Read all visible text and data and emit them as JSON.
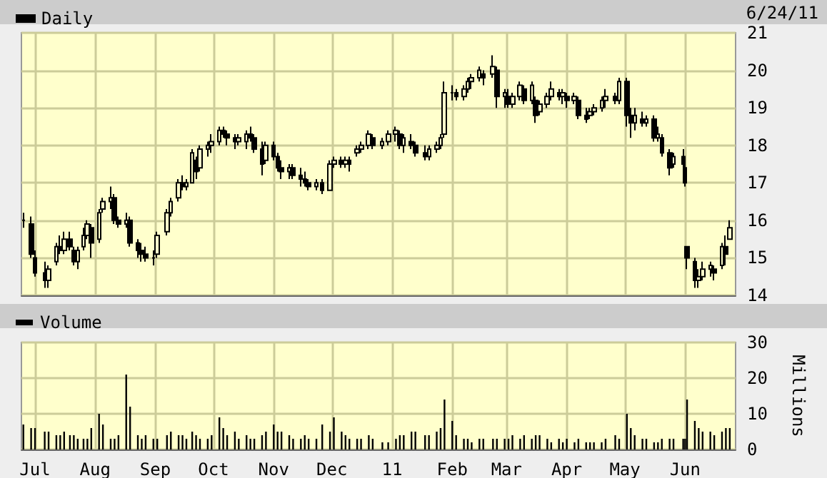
{
  "chart_data": [
    {
      "type": "candlestick",
      "legend": "top left",
      "grid": true,
      "tick_labels": "y",
      "annotations": [
        "6/24/11"
      ],
      "xlim": [
        "2010-06-24",
        "2011-06-27"
      ],
      "xticks": [
        {
          "value": "2010-07-01",
          "label": null
        },
        {
          "value": "2010-08-01",
          "label": null
        },
        {
          "value": "2010-09-01",
          "label": null
        },
        {
          "value": "2010-10-01",
          "label": null
        },
        {
          "value": "2010-11-01",
          "label": null
        },
        {
          "value": "2010-12-01",
          "label": null
        },
        {
          "value": "2011-01-01",
          "label": null
        },
        {
          "value": "2011-02-01",
          "label": null
        },
        {
          "value": "2011-03-01",
          "label": null
        },
        {
          "value": "2011-04-01",
          "label": null
        },
        {
          "value": "2011-05-01",
          "label": null
        },
        {
          "value": "2011-06-01",
          "label": null
        }
      ],
      "ylim": [
        14,
        21
      ],
      "yticks": [
        14,
        15,
        16,
        17,
        18,
        19,
        20,
        21
      ],
      "x": [
        "2010-06-25",
        "2010-06-29",
        "2010-07-01",
        "2010-07-06",
        "2010-07-08",
        "2010-07-12",
        "2010-07-14",
        "2010-07-16",
        "2010-07-19",
        "2010-07-21",
        "2010-07-23",
        "2010-07-26",
        "2010-07-28",
        "2010-07-30",
        "2010-08-03",
        "2010-08-05",
        "2010-08-09",
        "2010-08-11",
        "2010-08-13",
        "2010-08-17",
        "2010-08-19",
        "2010-08-23",
        "2010-08-25",
        "2010-08-27",
        "2010-08-31",
        "2010-09-02",
        "2010-09-07",
        "2010-09-09",
        "2010-09-13",
        "2010-09-15",
        "2010-09-17",
        "2010-09-20",
        "2010-09-22",
        "2010-09-24",
        "2010-09-28",
        "2010-09-30",
        "2010-10-04",
        "2010-10-06",
        "2010-10-08",
        "2010-10-12",
        "2010-10-14",
        "2010-10-18",
        "2010-10-20",
        "2010-10-22",
        "2010-10-26",
        "2010-10-28",
        "2010-11-01",
        "2010-11-03",
        "2010-11-05",
        "2010-11-09",
        "2010-11-11",
        "2010-11-15",
        "2010-11-17",
        "2010-11-19",
        "2010-11-23",
        "2010-11-26",
        "2010-11-30",
        "2010-12-02",
        "2010-12-06",
        "2010-12-08",
        "2010-12-10",
        "2010-12-14",
        "2010-12-16",
        "2010-12-20",
        "2010-12-22",
        "2010-12-27",
        "2010-12-30",
        "2011-01-03",
        "2011-01-05",
        "2011-01-07",
        "2011-01-11",
        "2011-01-13",
        "2011-01-18",
        "2011-01-20",
        "2011-01-24",
        "2011-01-26",
        "2011-01-28",
        "2011-02-01",
        "2011-02-03",
        "2011-02-07",
        "2011-02-09",
        "2011-02-11",
        "2011-02-15",
        "2011-02-17",
        "2011-02-22",
        "2011-02-24",
        "2011-02-28",
        "2011-03-02",
        "2011-03-04",
        "2011-03-08",
        "2011-03-10",
        "2011-03-14",
        "2011-03-16",
        "2011-03-18",
        "2011-03-22",
        "2011-03-24",
        "2011-03-28",
        "2011-03-30",
        "2011-04-01",
        "2011-04-05",
        "2011-04-07",
        "2011-04-11",
        "2011-04-13",
        "2011-04-15",
        "2011-04-19",
        "2011-04-21",
        "2011-04-26",
        "2011-04-28",
        "2011-05-02",
        "2011-05-04",
        "2011-05-06",
        "2011-05-10",
        "2011-05-12",
        "2011-05-16",
        "2011-05-18",
        "2011-05-20",
        "2011-05-24",
        "2011-05-26",
        "2011-05-31",
        "2011-06-01",
        "2011-06-02",
        "2011-06-06",
        "2011-06-08",
        "2011-06-10",
        "2011-06-14",
        "2011-06-16",
        "2011-06-20",
        "2011-06-22",
        "2011-06-24"
      ],
      "series": [
        {
          "name": "Daily",
          "color": "#000000",
          "ohlc": [
            [
              16.0,
              16.2,
              15.8,
              16.0
            ],
            [
              15.9,
              16.1,
              15.0,
              15.1
            ],
            [
              15.0,
              15.2,
              14.5,
              14.6
            ],
            [
              14.6,
              14.9,
              14.2,
              14.4
            ],
            [
              14.4,
              14.8,
              14.2,
              14.7
            ],
            [
              14.9,
              15.4,
              14.8,
              15.3
            ],
            [
              15.3,
              15.6,
              15.1,
              15.2
            ],
            [
              15.2,
              15.7,
              15.1,
              15.5
            ],
            [
              15.5,
              15.7,
              15.2,
              15.3
            ],
            [
              15.2,
              15.3,
              14.8,
              14.9
            ],
            [
              14.9,
              15.3,
              14.7,
              15.2
            ],
            [
              15.3,
              15.8,
              15.2,
              15.6
            ],
            [
              15.6,
              16.0,
              15.5,
              15.9
            ],
            [
              15.8,
              15.9,
              15.0,
              15.4
            ],
            [
              15.5,
              16.3,
              15.4,
              16.2
            ],
            [
              16.3,
              16.6,
              16.2,
              16.5
            ],
            [
              16.5,
              16.9,
              16.3,
              16.6
            ],
            [
              16.6,
              16.7,
              15.9,
              16.0
            ],
            [
              16.0,
              16.1,
              15.8,
              15.9
            ],
            [
              15.9,
              16.2,
              15.8,
              16.0
            ],
            [
              16.0,
              16.1,
              15.3,
              15.4
            ],
            [
              15.4,
              15.5,
              15.0,
              15.2
            ],
            [
              15.2,
              15.4,
              14.9,
              15.1
            ],
            [
              15.1,
              15.3,
              14.9,
              15.0
            ],
            [
              15.0,
              15.2,
              14.8,
              15.0
            ],
            [
              15.1,
              15.7,
              15.0,
              15.6
            ],
            [
              15.7,
              16.3,
              15.6,
              16.2
            ],
            [
              16.2,
              16.6,
              16.1,
              16.5
            ],
            [
              16.6,
              17.1,
              16.5,
              17.0
            ],
            [
              17.0,
              17.2,
              16.8,
              16.9
            ],
            [
              16.9,
              17.1,
              16.8,
              17.0
            ],
            [
              17.0,
              17.9,
              17.0,
              17.8
            ],
            [
              17.6,
              17.7,
              17.1,
              17.3
            ],
            [
              17.4,
              18.0,
              17.3,
              17.9
            ],
            [
              17.9,
              18.1,
              17.7,
              18.0
            ],
            [
              18.0,
              18.3,
              17.8,
              18.1
            ],
            [
              18.1,
              18.5,
              18.0,
              18.4
            ],
            [
              18.4,
              18.5,
              18.2,
              18.3
            ],
            [
              18.3,
              18.4,
              18.0,
              18.2
            ],
            [
              18.2,
              18.3,
              17.9,
              18.1
            ],
            [
              18.1,
              18.3,
              18.0,
              18.2
            ],
            [
              18.1,
              18.4,
              17.9,
              18.3
            ],
            [
              18.3,
              18.5,
              18.1,
              18.2
            ],
            [
              18.2,
              18.3,
              17.8,
              17.9
            ],
            [
              17.9,
              18.1,
              17.2,
              17.5
            ],
            [
              17.6,
              18.1,
              17.5,
              18.0
            ],
            [
              18.0,
              18.1,
              17.6,
              17.7
            ],
            [
              17.7,
              17.8,
              17.3,
              17.4
            ],
            [
              17.4,
              17.6,
              17.1,
              17.3
            ],
            [
              17.3,
              17.5,
              17.1,
              17.4
            ],
            [
              17.4,
              17.5,
              17.1,
              17.2
            ],
            [
              17.2,
              17.4,
              16.9,
              17.1
            ],
            [
              17.1,
              17.3,
              16.9,
              17.0
            ],
            [
              17.0,
              17.1,
              16.8,
              16.9
            ],
            [
              16.9,
              17.1,
              16.8,
              17.0
            ],
            [
              17.0,
              17.1,
              16.7,
              16.8
            ],
            [
              16.8,
              17.6,
              16.8,
              17.5
            ],
            [
              17.5,
              17.7,
              17.4,
              17.6
            ],
            [
              17.6,
              17.7,
              17.4,
              17.5
            ],
            [
              17.5,
              17.7,
              17.4,
              17.6
            ],
            [
              17.6,
              17.7,
              17.3,
              17.5
            ],
            [
              17.8,
              18.0,
              17.7,
              17.9
            ],
            [
              17.9,
              18.1,
              17.8,
              18.0
            ],
            [
              18.0,
              18.4,
              17.9,
              18.3
            ],
            [
              18.2,
              18.3,
              17.9,
              18.0
            ],
            [
              18.0,
              18.2,
              17.9,
              18.1
            ],
            [
              18.1,
              18.4,
              18.0,
              18.3
            ],
            [
              18.3,
              18.5,
              18.1,
              18.4
            ],
            [
              18.3,
              18.4,
              17.9,
              18.0
            ],
            [
              18.0,
              18.3,
              17.8,
              18.2
            ],
            [
              18.1,
              18.3,
              17.9,
              18.0
            ],
            [
              18.0,
              18.1,
              17.7,
              17.8
            ],
            [
              17.8,
              18.0,
              17.6,
              17.7
            ],
            [
              17.7,
              18.0,
              17.6,
              17.9
            ],
            [
              17.9,
              18.1,
              17.8,
              18.0
            ],
            [
              18.0,
              18.3,
              17.9,
              18.2
            ],
            [
              18.3,
              19.7,
              18.2,
              19.4
            ],
            [
              19.4,
              19.6,
              19.2,
              19.4
            ],
            [
              19.4,
              19.5,
              19.2,
              19.3
            ],
            [
              19.3,
              19.6,
              19.2,
              19.5
            ],
            [
              19.5,
              19.8,
              19.4,
              19.7
            ],
            [
              19.7,
              19.9,
              19.5,
              19.8
            ],
            [
              19.8,
              20.1,
              19.7,
              20.0
            ],
            [
              19.9,
              20.0,
              19.6,
              19.8
            ],
            [
              19.9,
              20.4,
              19.8,
              20.1
            ],
            [
              20.0,
              20.1,
              19.0,
              19.3
            ],
            [
              19.3,
              19.5,
              19.0,
              19.4
            ],
            [
              19.3,
              19.5,
              19.0,
              19.1
            ],
            [
              19.1,
              19.4,
              19.0,
              19.3
            ],
            [
              19.3,
              19.7,
              19.2,
              19.6
            ],
            [
              19.5,
              19.6,
              19.1,
              19.2
            ],
            [
              19.2,
              19.7,
              19.1,
              19.6
            ],
            [
              19.2,
              19.3,
              18.6,
              18.8
            ],
            [
              18.9,
              19.2,
              18.8,
              19.1
            ],
            [
              19.1,
              19.4,
              19.0,
              19.3
            ],
            [
              19.3,
              19.7,
              19.2,
              19.5
            ],
            [
              19.4,
              19.5,
              19.2,
              19.3
            ],
            [
              19.3,
              19.5,
              19.1,
              19.4
            ],
            [
              19.3,
              19.4,
              19.0,
              19.2
            ],
            [
              19.2,
              19.4,
              19.1,
              19.3
            ],
            [
              19.2,
              19.3,
              18.7,
              18.8
            ],
            [
              18.8,
              19.0,
              18.6,
              18.7
            ],
            [
              18.8,
              19.0,
              18.7,
              18.9
            ],
            [
              18.9,
              19.1,
              18.8,
              19.0
            ],
            [
              19.0,
              19.3,
              18.9,
              19.2
            ],
            [
              19.2,
              19.5,
              19.0,
              19.3
            ],
            [
              19.3,
              19.4,
              19.1,
              19.2
            ],
            [
              19.2,
              19.8,
              19.1,
              19.7
            ],
            [
              19.7,
              19.8,
              18.5,
              18.8
            ],
            [
              18.8,
              19.0,
              18.2,
              18.6
            ],
            [
              18.6,
              19.0,
              18.4,
              18.8
            ],
            [
              18.7,
              18.9,
              18.5,
              18.6
            ],
            [
              18.6,
              18.8,
              18.5,
              18.7
            ],
            [
              18.7,
              18.8,
              18.1,
              18.2
            ],
            [
              18.2,
              18.5,
              18.1,
              18.3
            ],
            [
              18.2,
              18.3,
              17.7,
              17.8
            ],
            [
              17.8,
              17.9,
              17.2,
              17.4
            ],
            [
              17.5,
              17.8,
              17.4,
              17.7
            ],
            [
              17.7,
              17.9,
              17.4,
              17.5
            ],
            [
              17.4,
              17.5,
              16.9,
              17.0
            ],
            [
              15.3,
              15.3,
              14.7,
              15.0
            ],
            [
              14.9,
              15.0,
              14.2,
              14.4
            ],
            [
              14.4,
              14.7,
              14.2,
              14.5
            ],
            [
              14.5,
              14.9,
              14.4,
              14.7
            ],
            [
              14.7,
              14.9,
              14.5,
              14.8
            ],
            [
              14.7,
              14.8,
              14.4,
              14.6
            ],
            [
              14.8,
              15.4,
              14.7,
              15.3
            ],
            [
              15.3,
              15.6,
              14.8,
              15.1
            ],
            [
              15.5,
              16.0,
              15.5,
              15.8
            ]
          ]
        }
      ]
    },
    {
      "type": "bar",
      "legend": "top left",
      "grid": true,
      "ylabel": "Millions",
      "xlim": [
        "2010-06-24",
        "2011-06-27"
      ],
      "xticks": [
        {
          "value": "2010-07-01",
          "label": "Jul"
        },
        {
          "value": "2010-08-01",
          "label": "Aug"
        },
        {
          "value": "2010-09-01",
          "label": "Sep"
        },
        {
          "value": "2010-10-01",
          "label": "Oct"
        },
        {
          "value": "2010-11-01",
          "label": "Nov"
        },
        {
          "value": "2010-12-01",
          "label": "Dec"
        },
        {
          "value": "2011-01-01",
          "label": "11"
        },
        {
          "value": "2011-02-01",
          "label": "Feb"
        },
        {
          "value": "2011-03-01",
          "label": "Mar"
        },
        {
          "value": "2011-04-01",
          "label": "Apr"
        },
        {
          "value": "2011-05-01",
          "label": "May"
        },
        {
          "value": "2011-06-01",
          "label": "Jun"
        }
      ],
      "ylim": [
        0,
        30
      ],
      "yticks": [
        0,
        10,
        20,
        30
      ],
      "x": [
        "2010-06-25",
        "2010-06-29",
        "2010-07-01",
        "2010-07-06",
        "2010-07-08",
        "2010-07-12",
        "2010-07-14",
        "2010-07-16",
        "2010-07-19",
        "2010-07-21",
        "2010-07-23",
        "2010-07-26",
        "2010-07-28",
        "2010-07-30",
        "2010-08-03",
        "2010-08-05",
        "2010-08-09",
        "2010-08-11",
        "2010-08-13",
        "2010-08-17",
        "2010-08-19",
        "2010-08-23",
        "2010-08-25",
        "2010-08-27",
        "2010-08-31",
        "2010-09-02",
        "2010-09-07",
        "2010-09-09",
        "2010-09-13",
        "2010-09-15",
        "2010-09-17",
        "2010-09-20",
        "2010-09-22",
        "2010-09-24",
        "2010-09-28",
        "2010-09-30",
        "2010-10-04",
        "2010-10-06",
        "2010-10-08",
        "2010-10-12",
        "2010-10-14",
        "2010-10-18",
        "2010-10-20",
        "2010-10-22",
        "2010-10-26",
        "2010-10-28",
        "2010-11-01",
        "2010-11-03",
        "2010-11-05",
        "2010-11-09",
        "2010-11-11",
        "2010-11-15",
        "2010-11-17",
        "2010-11-19",
        "2010-11-23",
        "2010-11-26",
        "2010-11-30",
        "2010-12-02",
        "2010-12-06",
        "2010-12-08",
        "2010-12-10",
        "2010-12-14",
        "2010-12-16",
        "2010-12-20",
        "2010-12-22",
        "2010-12-27",
        "2010-12-30",
        "2011-01-03",
        "2011-01-05",
        "2011-01-07",
        "2011-01-11",
        "2011-01-13",
        "2011-01-18",
        "2011-01-20",
        "2011-01-24",
        "2011-01-26",
        "2011-01-28",
        "2011-02-01",
        "2011-02-03",
        "2011-02-07",
        "2011-02-09",
        "2011-02-11",
        "2011-02-15",
        "2011-02-17",
        "2011-02-22",
        "2011-02-24",
        "2011-02-28",
        "2011-03-02",
        "2011-03-04",
        "2011-03-08",
        "2011-03-10",
        "2011-03-14",
        "2011-03-16",
        "2011-03-18",
        "2011-03-22",
        "2011-03-24",
        "2011-03-28",
        "2011-03-30",
        "2011-04-01",
        "2011-04-05",
        "2011-04-07",
        "2011-04-11",
        "2011-04-13",
        "2011-04-15",
        "2011-04-19",
        "2011-04-21",
        "2011-04-26",
        "2011-04-28",
        "2011-05-02",
        "2011-05-04",
        "2011-05-06",
        "2011-05-10",
        "2011-05-12",
        "2011-05-16",
        "2011-05-18",
        "2011-05-20",
        "2011-05-24",
        "2011-05-26",
        "2011-05-31",
        "2011-06-01",
        "2011-06-02",
        "2011-06-06",
        "2011-06-08",
        "2011-06-10",
        "2011-06-14",
        "2011-06-16",
        "2011-06-20",
        "2011-06-22",
        "2011-06-24"
      ],
      "series": [
        {
          "name": "Volume",
          "color": "#000000",
          "values": [
            7,
            6,
            6,
            5,
            5,
            4,
            4,
            5,
            4,
            4,
            3,
            3,
            3,
            6,
            10,
            7,
            3,
            3,
            4,
            21,
            12,
            4,
            3,
            4,
            3,
            3,
            4,
            5,
            4,
            4,
            3,
            5,
            4,
            3,
            3,
            4,
            9,
            6,
            4,
            5,
            3,
            4,
            3,
            3,
            4,
            5,
            7,
            5,
            5,
            4,
            3,
            3,
            4,
            3,
            3,
            7,
            5,
            9,
            5,
            4,
            3,
            3,
            3,
            4,
            3,
            2,
            2,
            3,
            4,
            4,
            5,
            5,
            4,
            4,
            5,
            6,
            14,
            8,
            4,
            3,
            3,
            2,
            3,
            3,
            3,
            3,
            3,
            3,
            4,
            3,
            4,
            3,
            4,
            4,
            3,
            2,
            3,
            2,
            3,
            2,
            3,
            2,
            2,
            2,
            2,
            3,
            4,
            3,
            10,
            6,
            4,
            3,
            3,
            2,
            2,
            3,
            3,
            3,
            3,
            3,
            14,
            8,
            6,
            5,
            5,
            4,
            5,
            6,
            6
          ]
        }
      ]
    }
  ]
}
